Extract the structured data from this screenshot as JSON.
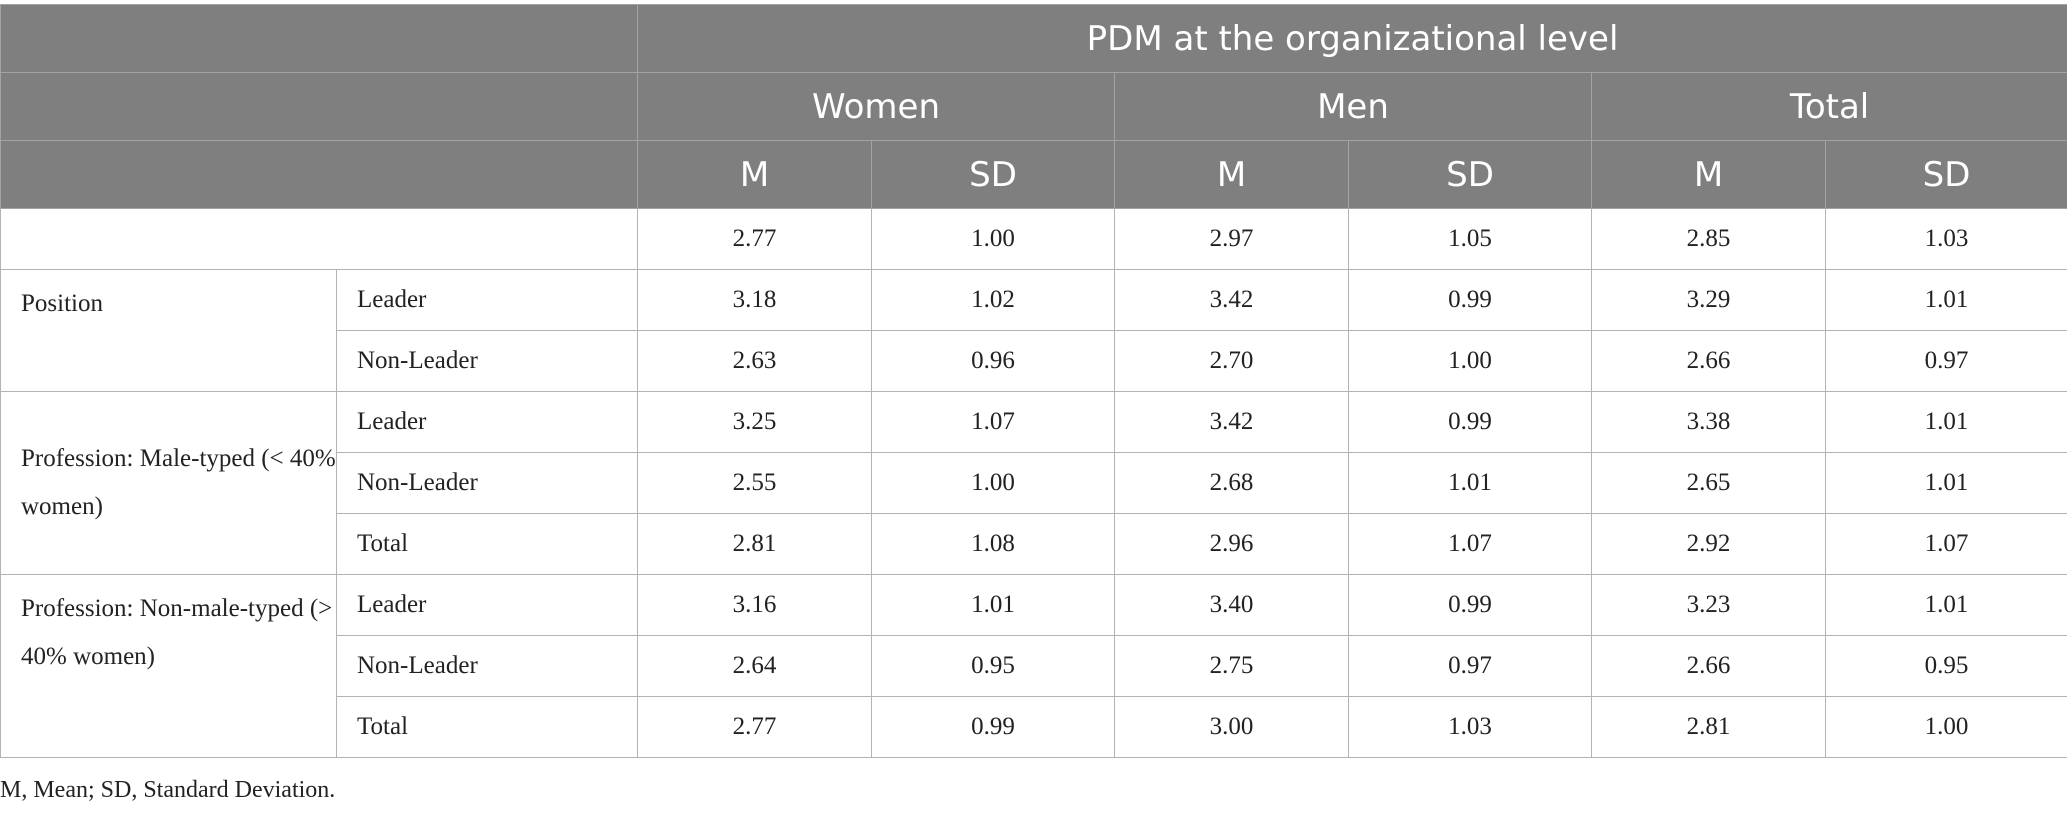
{
  "header": {
    "group_title": "PDM at the organizational level",
    "gender_groups": [
      "Women",
      "Men",
      "Total"
    ],
    "stat_labels": [
      "M",
      "SD",
      "M",
      "SD",
      "M",
      "SD"
    ]
  },
  "overall_row": [
    "2.77",
    "1.00",
    "2.97",
    "1.05",
    "2.85",
    "1.03"
  ],
  "groups": [
    {
      "label": "Position",
      "rows": [
        {
          "label": "Leader",
          "values": [
            "3.18",
            "1.02",
            "3.42",
            "0.99",
            "3.29",
            "1.01"
          ]
        },
        {
          "label": "Non-Leader",
          "values": [
            "2.63",
            "0.96",
            "2.70",
            "1.00",
            "2.66",
            "0.97"
          ]
        }
      ]
    },
    {
      "label": "Profession: Male-typed (< 40% women)",
      "rows": [
        {
          "label": "Leader",
          "values": [
            "3.25",
            "1.07",
            "3.42",
            "0.99",
            "3.38",
            "1.01"
          ]
        },
        {
          "label": "Non-Leader",
          "values": [
            "2.55",
            "1.00",
            "2.68",
            "1.01",
            "2.65",
            "1.01"
          ]
        },
        {
          "label": "Total",
          "values": [
            "2.81",
            "1.08",
            "2.96",
            "1.07",
            "2.92",
            "1.07"
          ]
        }
      ]
    },
    {
      "label": "Profession: Non-male-typed (> 40% women)",
      "rows": [
        {
          "label": "Leader",
          "values": [
            "3.16",
            "1.01",
            "3.40",
            "0.99",
            "3.23",
            "1.01"
          ]
        },
        {
          "label": "Non-Leader",
          "values": [
            "2.64",
            "0.95",
            "2.75",
            "0.97",
            "2.66",
            "0.95"
          ]
        },
        {
          "label": "Total",
          "values": [
            "2.77",
            "0.99",
            "3.00",
            "1.03",
            "2.81",
            "1.00"
          ]
        }
      ]
    }
  ],
  "footnote": "M, Mean; SD, Standard Deviation."
}
